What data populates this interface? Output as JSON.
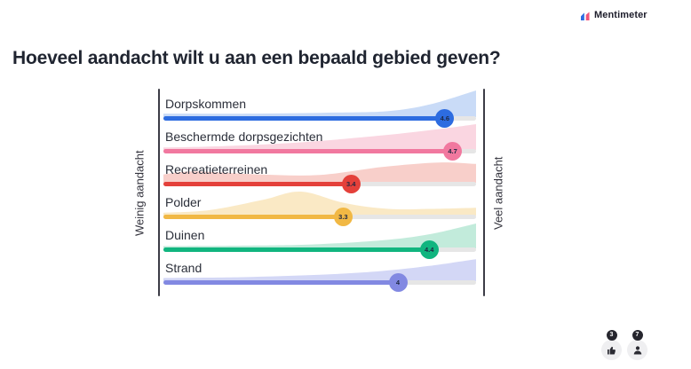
{
  "brand": {
    "name": "Mentimeter"
  },
  "title": "Hoeveel aandacht wilt u aan een bepaald gebied geven?",
  "axis": {
    "left_label": "Weinig aandacht",
    "right_label": "Veel aandacht"
  },
  "reactions": {
    "thumbs_up_count": "3",
    "participants_count": "7"
  },
  "colors": {
    "track": "#e6e6e6",
    "rule": "#3c3c46",
    "marker_text": "#1d2742",
    "title_text": "#1f2430"
  },
  "chart_data": {
    "type": "scales",
    "title": "Hoeveel aandacht wilt u aan een bepaald gebied geven?",
    "scale_min_label": "Weinig aandacht",
    "scale_max_label": "Veel aandacht",
    "scale_range": [
      1,
      5
    ],
    "legend_position": "none",
    "grid": false,
    "categories": [
      "Dorpskommen",
      "Beschermde dorpsgezichten",
      "Recreatieterreinen",
      "Polder",
      "Duinen",
      "Strand"
    ],
    "values": [
      4.6,
      4.7,
      3.4,
      3.3,
      4.4,
      4
    ],
    "rows": [
      {
        "label": "Dorpskommen",
        "value": 4.6,
        "display": "4.6",
        "color": "#2d6ce0",
        "fill": "#c9dbf7",
        "max_height": 29,
        "density": [
          [
            0,
            0.1
          ],
          [
            0.3,
            0.1
          ],
          [
            0.55,
            0.14
          ],
          [
            0.72,
            0.2
          ],
          [
            0.85,
            0.45
          ],
          [
            1,
            1.0
          ]
        ]
      },
      {
        "label": "Beschermde dorpsgezichten",
        "value": 4.7,
        "display": "4.7",
        "color": "#f1789f",
        "fill": "#fad6e1",
        "max_height": 28,
        "density": [
          [
            0,
            0.06
          ],
          [
            0.2,
            0.12
          ],
          [
            0.45,
            0.28
          ],
          [
            0.7,
            0.55
          ],
          [
            0.88,
            0.8
          ],
          [
            1,
            1.0
          ]
        ]
      },
      {
        "label": "Recreatieterreinen",
        "value": 3.4,
        "display": "3.4",
        "color": "#e4403a",
        "fill": "#f8cfca",
        "max_height": 28,
        "density": [
          [
            0,
            0.3
          ],
          [
            0.1,
            0.42
          ],
          [
            0.3,
            0.3
          ],
          [
            0.5,
            0.28
          ],
          [
            0.7,
            0.6
          ],
          [
            0.88,
            0.78
          ],
          [
            1,
            0.72
          ]
        ]
      },
      {
        "label": "Polder",
        "value": 3.3,
        "display": "3.3",
        "color": "#f1b844",
        "fill": "#fae9c5",
        "max_height": 26,
        "density": [
          [
            0,
            0.08
          ],
          [
            0.15,
            0.2
          ],
          [
            0.32,
            0.65
          ],
          [
            0.44,
            1.0
          ],
          [
            0.58,
            0.5
          ],
          [
            0.72,
            0.25
          ],
          [
            0.85,
            0.25
          ],
          [
            1,
            0.3
          ]
        ]
      },
      {
        "label": "Duinen",
        "value": 4.4,
        "display": "4.4",
        "color": "#11b57f",
        "fill": "#c2ebdb",
        "max_height": 27,
        "density": [
          [
            0,
            0.06
          ],
          [
            0.3,
            0.08
          ],
          [
            0.5,
            0.14
          ],
          [
            0.7,
            0.3
          ],
          [
            0.85,
            0.55
          ],
          [
            1,
            1.0
          ]
        ]
      },
      {
        "label": "Strand",
        "value": 4,
        "display": "4",
        "color": "#8289e2",
        "fill": "#d3d7f6",
        "max_height": 25,
        "density": [
          [
            0,
            0.1
          ],
          [
            0.25,
            0.14
          ],
          [
            0.5,
            0.25
          ],
          [
            0.7,
            0.42
          ],
          [
            0.85,
            0.65
          ],
          [
            1,
            0.95
          ]
        ]
      }
    ]
  }
}
